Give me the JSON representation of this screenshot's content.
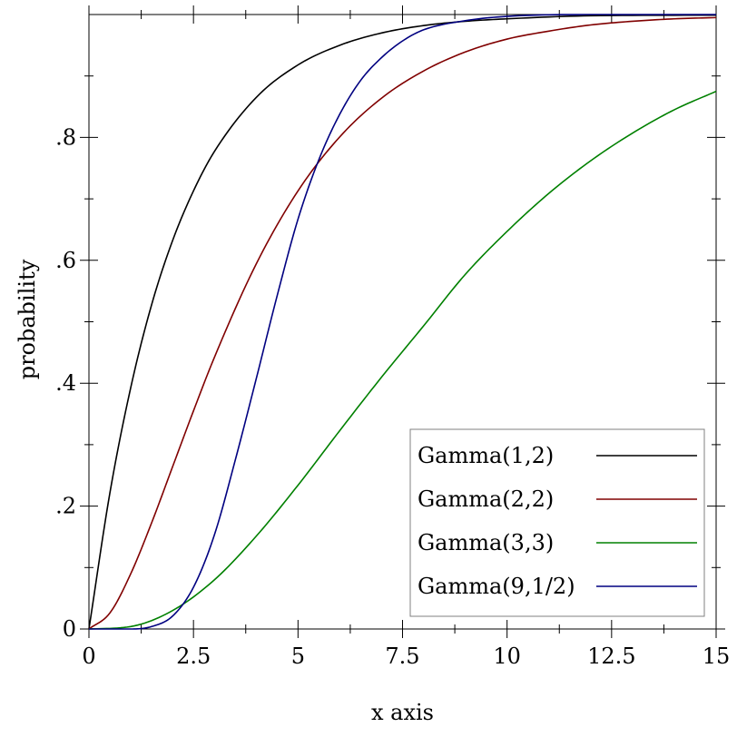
{
  "chart_data": {
    "type": "line",
    "title": "",
    "xlabel": "x axis",
    "ylabel": "probability",
    "xlim": [
      0,
      15
    ],
    "ylim": [
      0,
      1
    ],
    "x_ticks": [
      {
        "value": 0,
        "label": "0"
      },
      {
        "value": 2.5,
        "label": "2.5"
      },
      {
        "value": 5,
        "label": "5"
      },
      {
        "value": 7.5,
        "label": "7.5"
      },
      {
        "value": 10,
        "label": "10"
      },
      {
        "value": 12.5,
        "label": "12.5"
      },
      {
        "value": 15,
        "label": "15"
      }
    ],
    "y_ticks": [
      {
        "value": 0,
        "label": "0"
      },
      {
        "value": 0.2,
        "label": ".2"
      },
      {
        "value": 0.4,
        "label": ".4"
      },
      {
        "value": 0.6,
        "label": ".6"
      },
      {
        "value": 0.8,
        "label": ".8"
      }
    ],
    "y_minor_ticks": [
      0.1,
      0.3,
      0.5,
      0.7,
      0.9
    ],
    "grid": false,
    "legend_position": "bottom-right",
    "series": [
      {
        "name": "Gamma(1,2)",
        "color": "#000000",
        "x": [
          0,
          0.5,
          1,
          1.5,
          2,
          2.5,
          3,
          4,
          5,
          6,
          7,
          8,
          9,
          10,
          12,
          15
        ],
        "y": [
          0,
          0.221,
          0.393,
          0.528,
          0.632,
          0.713,
          0.777,
          0.865,
          0.918,
          0.95,
          0.97,
          0.982,
          0.989,
          0.993,
          0.998,
          0.999
        ]
      },
      {
        "name": "Gamma(2,2)",
        "color": "#800000",
        "x": [
          0,
          0.5,
          1,
          1.5,
          2,
          2.5,
          3,
          4,
          5,
          6,
          7,
          8,
          9,
          10,
          11,
          12,
          13,
          14,
          15
        ],
        "y": [
          0,
          0.026,
          0.09,
          0.173,
          0.264,
          0.355,
          0.442,
          0.594,
          0.713,
          0.801,
          0.864,
          0.908,
          0.939,
          0.96,
          0.973,
          0.983,
          0.989,
          0.993,
          0.995
        ]
      },
      {
        "name": "Gamma(3,3)",
        "color": "#008000",
        "x": [
          0,
          1,
          2,
          3,
          4,
          5,
          6,
          7,
          8,
          9,
          10,
          11,
          12,
          13,
          14,
          15
        ],
        "y": [
          0,
          0.004,
          0.03,
          0.08,
          0.151,
          0.234,
          0.323,
          0.41,
          0.493,
          0.577,
          0.647,
          0.709,
          0.762,
          0.807,
          0.845,
          0.875
        ]
      },
      {
        "name": "Gamma(9,1/2)",
        "color": "#000080",
        "x": [
          0,
          0.5,
          1,
          1.5,
          2,
          2.5,
          3,
          3.5,
          4,
          4.5,
          5,
          5.5,
          6,
          6.5,
          7,
          7.5,
          8,
          9,
          10,
          12,
          15
        ],
        "y": [
          0,
          0.0,
          0.0,
          0.004,
          0.021,
          0.068,
          0.153,
          0.275,
          0.407,
          0.542,
          0.667,
          0.764,
          0.838,
          0.893,
          0.93,
          0.957,
          0.975,
          0.99,
          0.997,
          1.0,
          1.0
        ]
      }
    ]
  }
}
